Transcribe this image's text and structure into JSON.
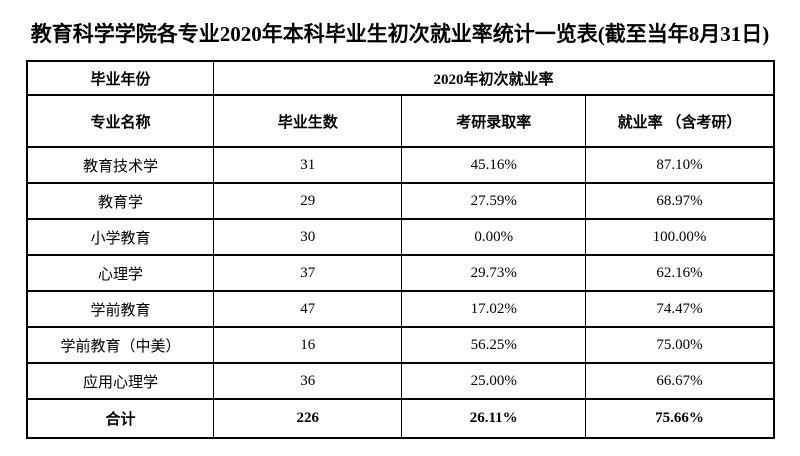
{
  "title": "教育科学学院各专业2020年本科毕业生初次就业率统计一览表(截至当年8月31日)",
  "table": {
    "year_label": "毕业年份",
    "year_value": "2020年初次就业率",
    "columns": [
      "专业名称",
      "毕业生数",
      "考研录取率",
      "就业率 （含考研）"
    ],
    "rows": [
      {
        "major": "教育技术学",
        "graduates": "31",
        "kaoyan_rate": "45.16%",
        "employment_rate": "87.10%"
      },
      {
        "major": "教育学",
        "graduates": "29",
        "kaoyan_rate": "27.59%",
        "employment_rate": "68.97%"
      },
      {
        "major": "小学教育",
        "graduates": "30",
        "kaoyan_rate": "0.00%",
        "employment_rate": "100.00%"
      },
      {
        "major": "心理学",
        "graduates": "37",
        "kaoyan_rate": "29.73%",
        "employment_rate": "62.16%"
      },
      {
        "major": "学前教育",
        "graduates": "47",
        "kaoyan_rate": "17.02%",
        "employment_rate": "74.47%"
      },
      {
        "major": "学前教育（中美）",
        "graduates": "16",
        "kaoyan_rate": "56.25%",
        "employment_rate": "75.00%"
      },
      {
        "major": "应用心理学",
        "graduates": "36",
        "kaoyan_rate": "25.00%",
        "employment_rate": "66.67%"
      }
    ],
    "total": {
      "major": "合计",
      "graduates": "226",
      "kaoyan_rate": "26.11%",
      "employment_rate": "75.66%"
    }
  }
}
